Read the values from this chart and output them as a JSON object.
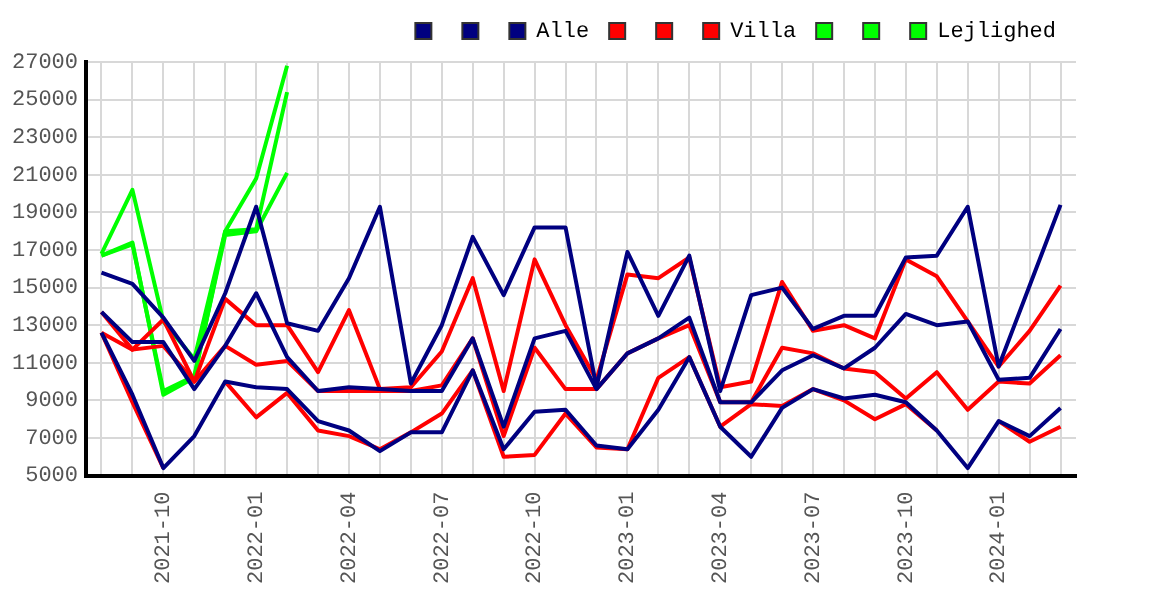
{
  "chart_data": {
    "type": "line",
    "categories": [
      null,
      null,
      "2021-10",
      null,
      null,
      "2022-01",
      null,
      null,
      "2022-04",
      null,
      null,
      "2022-07",
      null,
      null,
      "2022-10",
      null,
      null,
      "2023-01",
      null,
      null,
      "2023-04",
      null,
      null,
      "2023-07",
      null,
      null,
      "2023-10",
      null,
      null,
      "2024-01",
      null,
      null
    ],
    "series": [
      {
        "color": "#000080",
        "values": [
          15800,
          15200,
          13400,
          11100,
          14700,
          19300,
          13100,
          12700,
          15500,
          19300,
          9900,
          13000,
          17700,
          14600,
          18200,
          18200,
          9700,
          16900,
          13500,
          16700,
          9500,
          14600,
          15000,
          12800,
          13500,
          13500,
          16600,
          16700,
          19300,
          10800,
          15100,
          19400
        ]
      },
      {
        "color": "#000080",
        "values": [
          13700,
          12100,
          12100,
          9600,
          11900,
          14700,
          11300,
          9500,
          9700,
          9600,
          9500,
          9500,
          12300,
          7600,
          12300,
          12700,
          9600,
          11500,
          12300,
          13400,
          8900,
          8900,
          10600,
          11400,
          10700,
          11800,
          13600,
          13000,
          13200,
          10100,
          10200,
          12800
        ]
      },
      {
        "name": "Alle",
        "color": "#000080",
        "values": [
          12600,
          9300,
          5400,
          7100,
          10000,
          9700,
          9600,
          7900,
          7400,
          6300,
          7300,
          7300,
          10600,
          6400,
          8400,
          8500,
          6600,
          6400,
          8500,
          11300,
          7600,
          6000,
          8600,
          9600,
          9100,
          9300,
          8900,
          7400,
          5400,
          7900,
          7100,
          8600
        ]
      },
      {
        "color": "#ff0000",
        "values": [
          13700,
          11700,
          13300,
          10000,
          14400,
          13000,
          13000,
          10500,
          13800,
          9600,
          9700,
          11600,
          15500,
          9500,
          16500,
          13000,
          10100,
          15700,
          15500,
          16600,
          9700,
          10000,
          15300,
          12700,
          13000,
          12300,
          16500,
          15600,
          13200,
          10800,
          12700,
          15100
        ]
      },
      {
        "color": "#ff0000",
        "values": [
          12600,
          11700,
          11900,
          10000,
          11900,
          10900,
          11100,
          9500,
          9500,
          9500,
          9500,
          9800,
          12300,
          7100,
          11800,
          9600,
          9600,
          11500,
          12300,
          13000,
          8900,
          8900,
          11800,
          11500,
          10700,
          10500,
          9100,
          10500,
          8500,
          10000,
          9900,
          11400
        ]
      },
      {
        "name": "Villa",
        "color": "#ff0000",
        "values": [
          12600,
          8900,
          5400,
          null,
          10000,
          8100,
          9400,
          7400,
          7100,
          6400,
          7300,
          8300,
          10600,
          6000,
          6100,
          8300,
          6500,
          6400,
          10200,
          11300,
          7600,
          8800,
          8700,
          9600,
          9000,
          8000,
          8800,
          7400,
          null,
          7900,
          6800,
          7600
        ]
      },
      {
        "color": "#00ff00",
        "values": [
          16800,
          20200,
          13200,
          11200,
          18000,
          20800,
          26800,
          null,
          null,
          null,
          null,
          null,
          null,
          null,
          null,
          null,
          null,
          null,
          null,
          null,
          null,
          null,
          null,
          null,
          null,
          null,
          null,
          null,
          null,
          null,
          null,
          null
        ]
      },
      {
        "color": "#00ff00",
        "values": [
          16700,
          17400,
          9300,
          10200,
          18000,
          18100,
          25400,
          null,
          null,
          null,
          null,
          null,
          null,
          null,
          null,
          null,
          null,
          null,
          null,
          null,
          null,
          null,
          null,
          null,
          null,
          null,
          null,
          null,
          null,
          null,
          null,
          null
        ]
      },
      {
        "name": "Lejlighed",
        "color": "#00ff00",
        "values": [
          16700,
          17300,
          9500,
          10300,
          17800,
          18000,
          21100,
          null,
          null,
          null,
          null,
          null,
          null,
          null,
          null,
          null,
          null,
          null,
          null,
          null,
          null,
          null,
          null,
          null,
          null,
          null,
          null,
          null,
          null,
          null,
          null,
          null
        ]
      }
    ],
    "ylim": [
      5000,
      27000
    ],
    "yticks": [
      5000,
      7000,
      9000,
      11000,
      13000,
      15000,
      17000,
      19000,
      21000,
      23000,
      25000,
      27000
    ],
    "grid": true,
    "legend": "top right",
    "marker": "none",
    "line_style": "solid"
  }
}
